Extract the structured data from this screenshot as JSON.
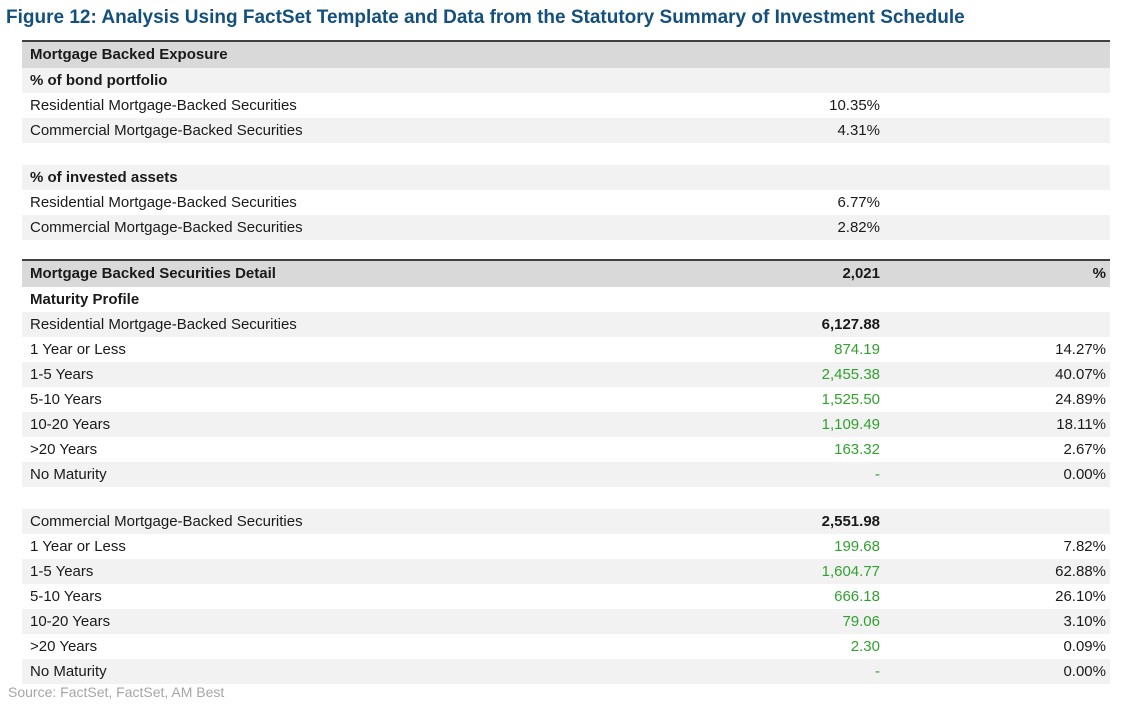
{
  "figure": {
    "title": "Figure 12: Analysis Using FactSet Template and Data from the Statutory Summary of Investment Schedule",
    "source": "Source: FactSet, FactSet, AM Best"
  },
  "colors": {
    "title_blue": "#14507d",
    "header_gray": "#d9d9d9",
    "stripe_gray": "#f2f2f2",
    "value_green": "#31a12f",
    "top_border": "#404040",
    "source_gray": "#a6a6a6"
  },
  "exposure_table": {
    "header": "Mortgage Backed Exposure",
    "sections": [
      {
        "label": "% of bond portfolio",
        "rows": [
          {
            "label": "Residential Mortgage-Backed Securities",
            "value": "10.35%"
          },
          {
            "label": "Commercial Mortgage-Backed Securities",
            "value": "4.31%"
          }
        ]
      },
      {
        "label": "% of invested assets",
        "rows": [
          {
            "label": "Residential Mortgage-Backed Securities",
            "value": "6.77%"
          },
          {
            "label": "Commercial Mortgage-Backed Securities",
            "value": "2.82%"
          }
        ]
      }
    ]
  },
  "detail_table": {
    "header": {
      "label": "Mortgage Backed Securities Detail",
      "count": "2,021",
      "pct_col": "%"
    },
    "subheader": "Maturity Profile",
    "groups": [
      {
        "label": "Residential Mortgage-Backed Securities",
        "total": "6,127.88",
        "rows": [
          {
            "label": "1 Year or Less",
            "value": "874.19",
            "pct": "14.27%"
          },
          {
            "label": "1-5 Years",
            "value": "2,455.38",
            "pct": "40.07%"
          },
          {
            "label": "5-10 Years",
            "value": "1,525.50",
            "pct": "24.89%"
          },
          {
            "label": "10-20 Years",
            "value": "1,109.49",
            "pct": "18.11%"
          },
          {
            "label": ">20 Years",
            "value": "163.32",
            "pct": "2.67%"
          },
          {
            "label": "No Maturity",
            "value": "-",
            "pct": "0.00%"
          }
        ]
      },
      {
        "label": "Commercial Mortgage-Backed Securities",
        "total": "2,551.98",
        "rows": [
          {
            "label": "1 Year or Less",
            "value": "199.68",
            "pct": "7.82%"
          },
          {
            "label": "1-5 Years",
            "value": "1,604.77",
            "pct": "62.88%"
          },
          {
            "label": "5-10 Years",
            "value": "666.18",
            "pct": "26.10%"
          },
          {
            "label": "10-20 Years",
            "value": "79.06",
            "pct": "3.10%"
          },
          {
            "label": ">20 Years",
            "value": "2.30",
            "pct": "0.09%"
          },
          {
            "label": "No Maturity",
            "value": "-",
            "pct": "0.00%"
          }
        ]
      }
    ]
  }
}
